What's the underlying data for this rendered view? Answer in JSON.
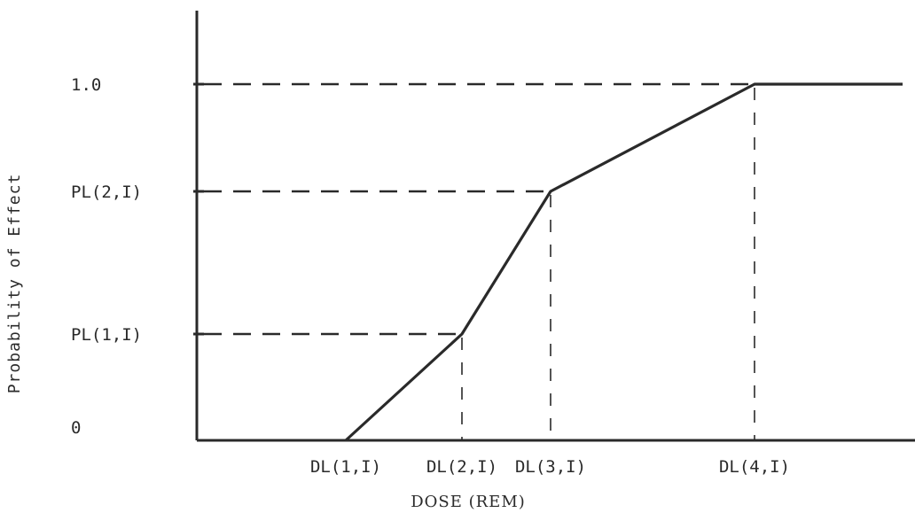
{
  "chart_data": {
    "type": "line",
    "xlabel": "DOSE (REM)",
    "ylabel": "Probability of Effect",
    "x_ticks": [
      "DL(1,I)",
      "DL(2,I)",
      "DL(3,I)",
      "DL(4,I)"
    ],
    "y_ticks": [
      "0",
      "PL(1,I)",
      "PL(2,I)",
      "1.0"
    ],
    "series": [
      {
        "points": [
          {
            "x": "DL(1,I)",
            "y": "0"
          },
          {
            "x": "DL(2,I)",
            "y": "PL(1,I)"
          },
          {
            "x": "DL(3,I)",
            "y": "PL(2,I)"
          },
          {
            "x": "DL(4,I)",
            "y": "1.0"
          }
        ],
        "continues_flat_after_last_point": true
      }
    ],
    "guide_lines": "dashed lines from y-axis to each breakpoint and from each breakpoint down to x-axis",
    "grid": false,
    "legend": "none"
  }
}
